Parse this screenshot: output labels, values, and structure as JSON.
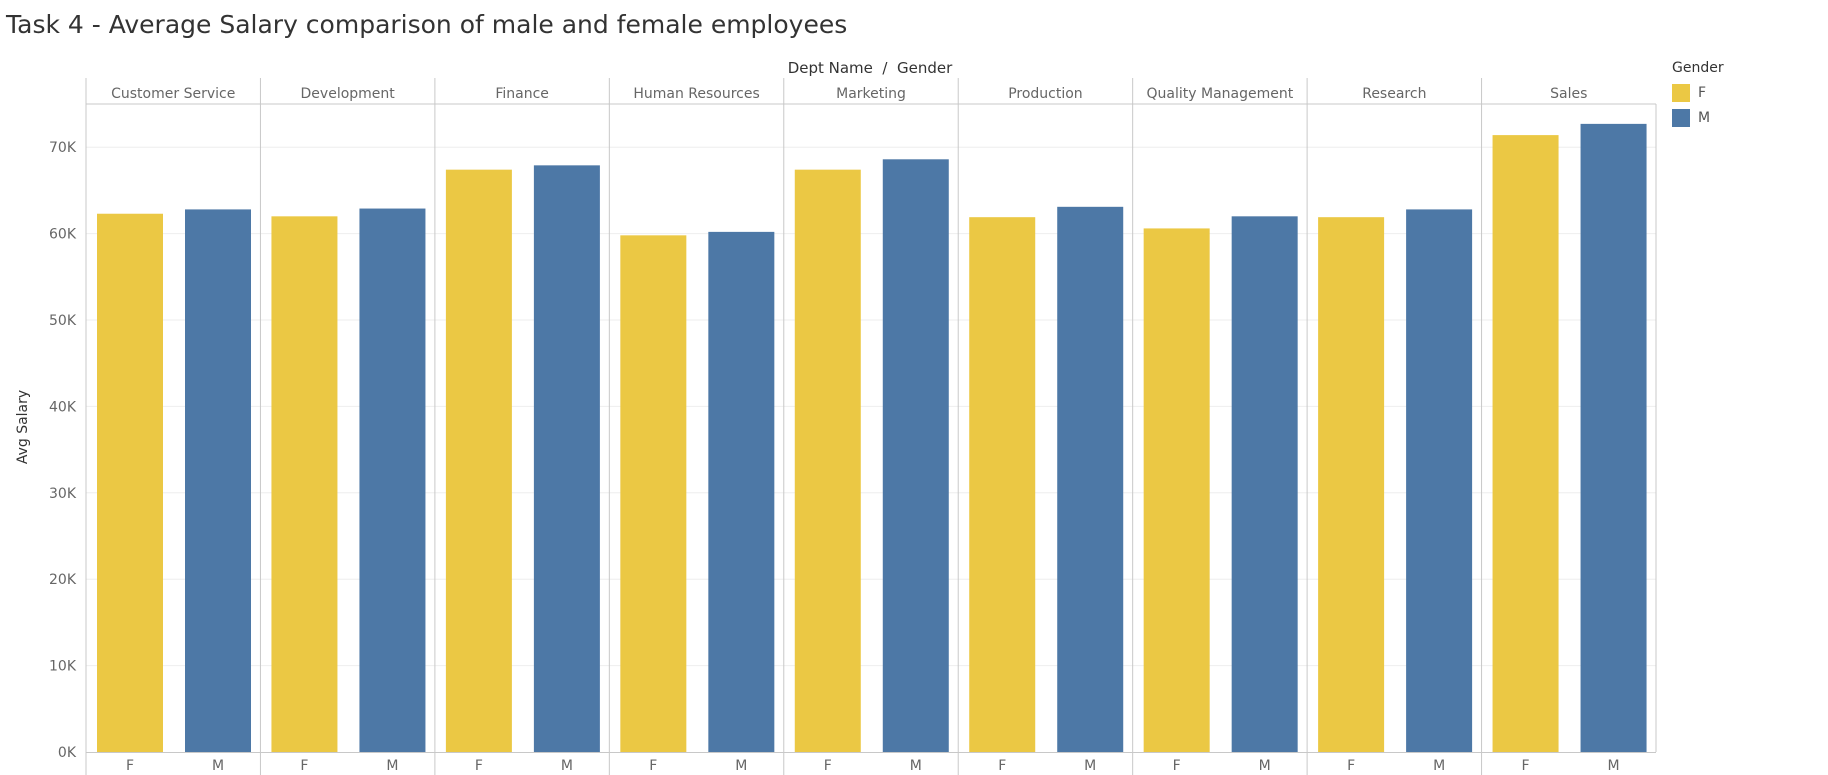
{
  "chart_data": {
    "type": "bar",
    "title": "Task 4 - Average Salary comparison of male and female employees",
    "column_header": "Dept Name  /  Gender",
    "ylabel": "Avg Salary",
    "ylim": [
      0,
      75000
    ],
    "yticks": [
      0,
      10000,
      20000,
      30000,
      40000,
      50000,
      60000,
      70000
    ],
    "ytick_labels": [
      "0K",
      "10K",
      "20K",
      "30K",
      "40K",
      "50K",
      "60K",
      "70K"
    ],
    "grid": true,
    "legend_placement": "top-right",
    "categories": [
      "Customer Service",
      "Development",
      "Finance",
      "Human Resources",
      "Marketing",
      "Production",
      "Quality Management",
      "Research",
      "Sales"
    ],
    "sub_categories": [
      "F",
      "M"
    ],
    "series": [
      {
        "name": "F",
        "color": "#EBC844",
        "values": [
          62300,
          62000,
          67400,
          59800,
          67400,
          61900,
          60600,
          61900,
          71400
        ]
      },
      {
        "name": "M",
        "color": "#4D78A6",
        "values": [
          62800,
          62900,
          67900,
          60200,
          68600,
          63100,
          62000,
          62800,
          72700
        ]
      }
    ]
  },
  "legend": {
    "title": "Gender",
    "items": [
      {
        "label": "F",
        "color": "#EBC844"
      },
      {
        "label": "M",
        "color": "#4D78A6"
      }
    ]
  }
}
